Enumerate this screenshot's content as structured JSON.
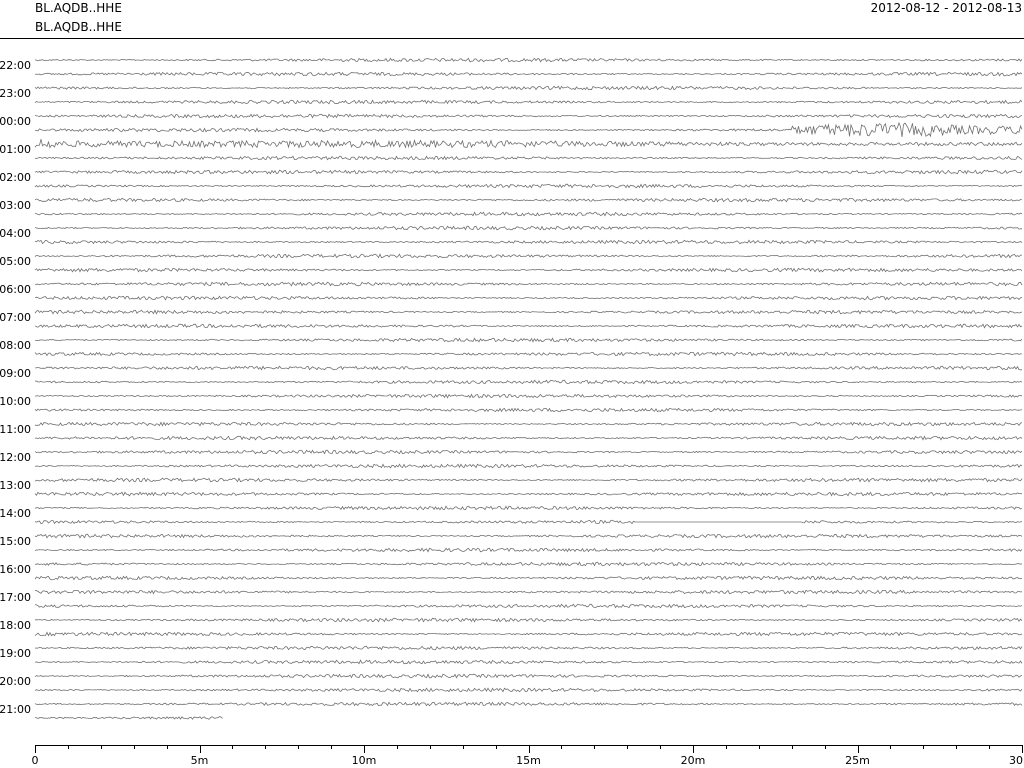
{
  "header": {
    "station_top": "BL.AQDB..HHE",
    "station_sub": "BL.AQDB..HHE",
    "date_range": "2012-08-12 - 2012-08-13"
  },
  "chart_data": {
    "type": "line",
    "title": "BL.AQDB..HHE",
    "subtitle": "2012-08-12 - 2012-08-13",
    "xlabel": "",
    "ylabel": "",
    "x_ticks": [
      "0",
      "5m",
      "10m",
      "15m",
      "20m",
      "25m",
      "30"
    ],
    "xlim_minutes": [
      0,
      30
    ],
    "grid": false,
    "legend": "none",
    "trace_color": "#707070",
    "hour_labels": [
      "22:00",
      "23:00",
      "00:00",
      "01:00",
      "02:00",
      "03:00",
      "04:00",
      "05:00",
      "06:00",
      "07:00",
      "08:00",
      "09:00",
      "10:00",
      "11:00",
      "12:00",
      "13:00",
      "14:00",
      "15:00",
      "16:00",
      "17:00",
      "18:00",
      "19:00",
      "20:00",
      "21:00"
    ],
    "row_count": 48,
    "last_row_end_minutes": 5.7,
    "events": [
      {
        "row": 5,
        "start_minutes": 23,
        "end_minutes": 30,
        "amplitude": "high"
      },
      {
        "row": 6,
        "start_minutes": 0,
        "end_minutes": 30,
        "amplitude": "high"
      }
    ],
    "gaps": [
      {
        "row": 33,
        "start_minutes": 18.2,
        "end_minutes": 23.3
      }
    ]
  }
}
